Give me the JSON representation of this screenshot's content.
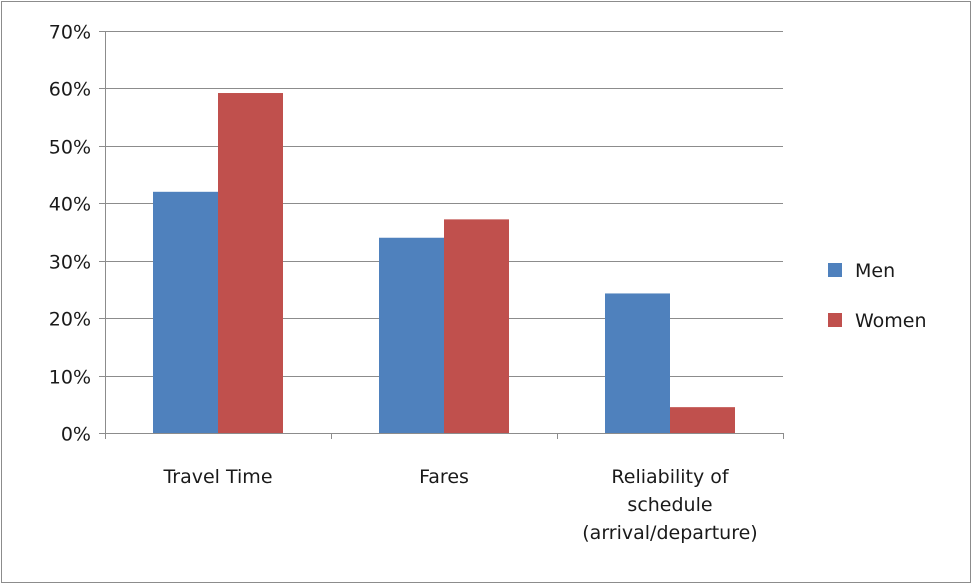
{
  "chart_data": {
    "type": "bar",
    "categories": [
      [
        "Travel Time"
      ],
      [
        "Fares"
      ],
      [
        "Reliability of",
        "schedule",
        "(arrival/departure)"
      ]
    ],
    "series": [
      {
        "name": "Men",
        "color": "#4f81bd",
        "values": [
          0.42,
          0.34,
          0.243
        ]
      },
      {
        "name": "Women",
        "color": "#c0504d",
        "values": [
          0.592,
          0.372,
          0.045
        ]
      }
    ],
    "ylim": [
      0,
      0.7
    ],
    "yticks": [
      {
        "value": 0,
        "label": "0%"
      },
      {
        "value": 0.1,
        "label": "10%"
      },
      {
        "value": 0.2,
        "label": "20%"
      },
      {
        "value": 0.3,
        "label": "30%"
      },
      {
        "value": 0.4,
        "label": "40%"
      },
      {
        "value": 0.5,
        "label": "50%"
      },
      {
        "value": 0.6,
        "label": "60%"
      },
      {
        "value": 0.7,
        "label": "70%"
      }
    ],
    "grid": true,
    "legend": {
      "position": "right"
    },
    "title": "",
    "xlabel": "",
    "ylabel": ""
  }
}
